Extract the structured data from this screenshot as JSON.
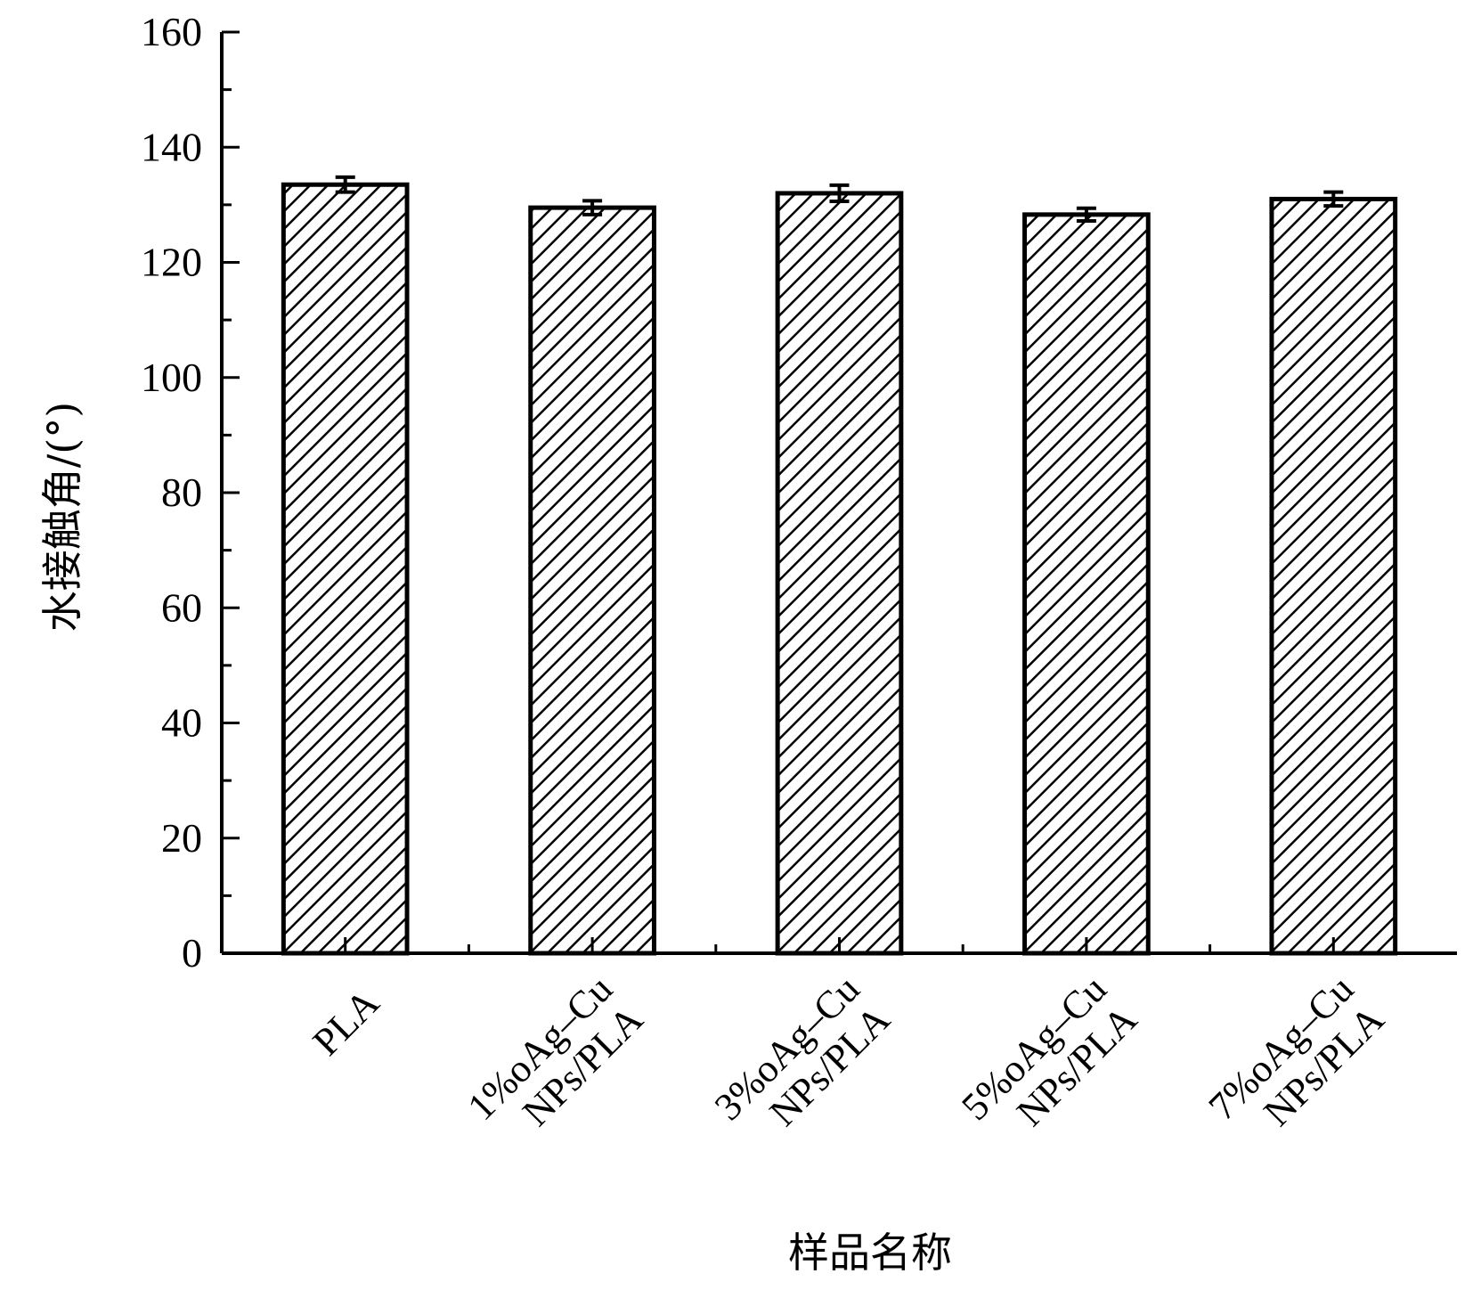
{
  "chart_data": {
    "type": "bar",
    "title": "",
    "xlabel": "样品名称",
    "ylabel": "水接触角/(°)",
    "categories": [
      "PLA",
      "1%oAg–Cu NPs/PLA",
      "3%oAg–Cu NPs/PLA",
      "5%oAg–Cu NPs/PLA",
      "7%oAg–Cu NPs/PLA"
    ],
    "category_lines": [
      [
        "PLA"
      ],
      [
        "1%oAg–Cu",
        "NPs/PLA"
      ],
      [
        "3%oAg–Cu",
        "NPs/PLA"
      ],
      [
        "5%oAg–Cu",
        "NPs/PLA"
      ],
      [
        "7%oAg–Cu",
        "NPs/PLA"
      ]
    ],
    "values": [
      133.5,
      129.5,
      132.0,
      128.3,
      131.0
    ],
    "errors": [
      1.3,
      1.2,
      1.4,
      1.1,
      1.2
    ],
    "ylim": [
      0,
      160
    ],
    "yticks": [
      0,
      20,
      40,
      60,
      80,
      100,
      120,
      140,
      160
    ],
    "bar_fill": "diagonal-hatch",
    "bar_color": "#000000",
    "background": "#ffffff",
    "grid": false,
    "legend": "none"
  }
}
